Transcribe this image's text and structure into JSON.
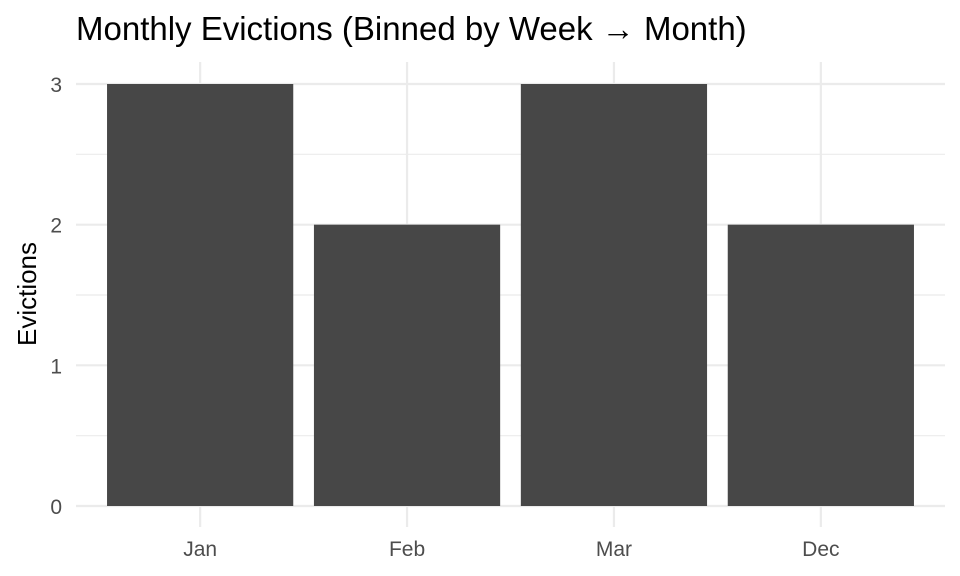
{
  "chart_data": {
    "type": "bar",
    "title": "Monthly Evictions (Binned by Week → Month)",
    "xlabel": "",
    "ylabel": "Evictions",
    "categories": [
      "Jan",
      "Feb",
      "Mar",
      "Dec"
    ],
    "values": [
      3,
      2,
      3,
      2
    ],
    "ylim": [
      0,
      3
    ],
    "yticks": [
      "0",
      "1",
      "2",
      "3"
    ],
    "grid": true,
    "legend": "none",
    "bar_color": "#474747"
  }
}
